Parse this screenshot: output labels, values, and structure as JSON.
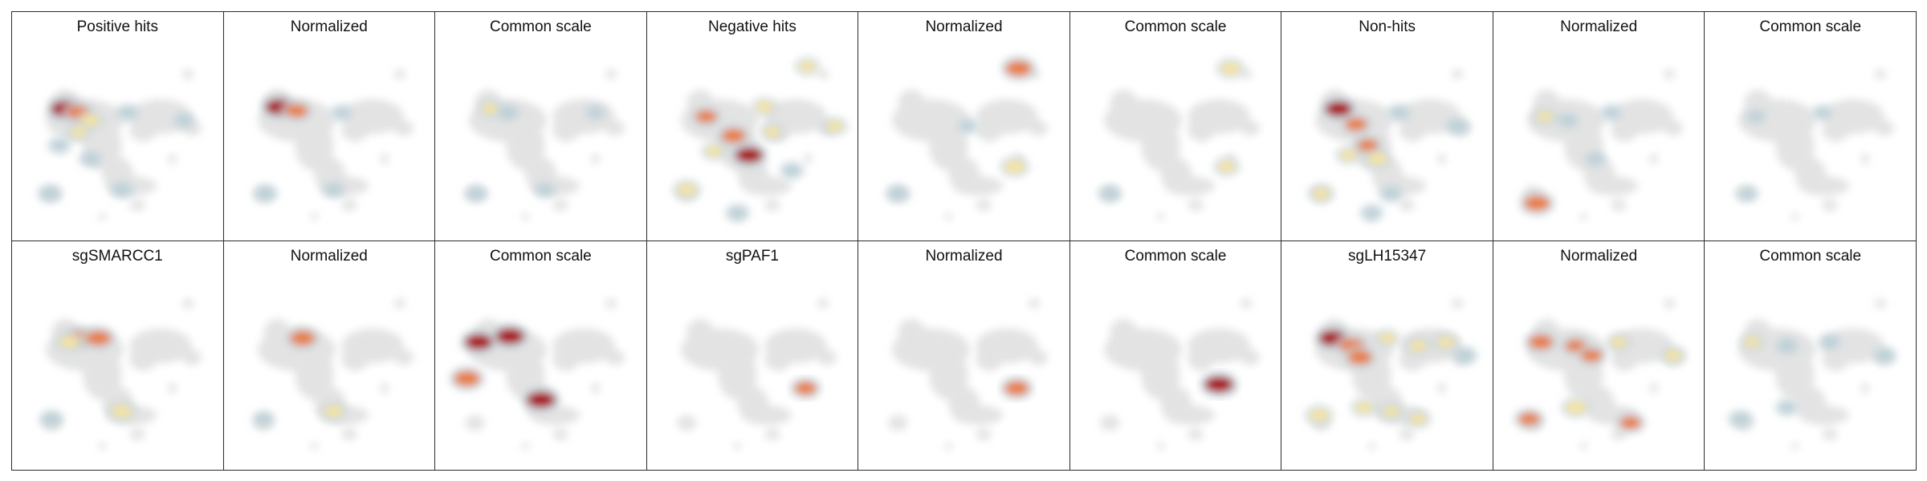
{
  "figure": {
    "rows": [
      {
        "panels": [
          {
            "title": "Positive hits",
            "hotspots": [
              [
                0.23,
                0.36,
                1.0
              ],
              [
                0.3,
                0.38,
                0.7
              ],
              [
                0.36,
                0.42,
                0.45
              ],
              [
                0.55,
                0.38,
                0.3
              ],
              [
                0.2,
                0.55,
                0.25
              ],
              [
                0.36,
                0.62,
                0.25
              ],
              [
                0.84,
                0.42,
                0.2
              ],
              [
                0.15,
                0.8,
                0.3
              ],
              [
                0.52,
                0.78,
                0.3
              ],
              [
                0.3,
                0.48,
                0.35
              ]
            ]
          },
          {
            "title": "Normalized",
            "hotspots": [
              [
                0.24,
                0.35,
                0.95
              ],
              [
                0.33,
                0.37,
                0.65
              ],
              [
                0.56,
                0.38,
                0.2
              ],
              [
                0.17,
                0.8,
                0.3
              ],
              [
                0.52,
                0.78,
                0.25
              ]
            ]
          },
          {
            "title": "Common scale",
            "hotspots": [
              [
                0.24,
                0.36,
                0.35
              ],
              [
                0.33,
                0.38,
                0.3
              ],
              [
                0.17,
                0.8,
                0.25
              ],
              [
                0.52,
                0.78,
                0.2
              ],
              [
                0.78,
                0.38,
                0.15
              ]
            ]
          }
        ]
      },
      {
        "panels": [
          {
            "title": "Negative hits",
            "hotspots": [
              [
                0.78,
                0.14,
                0.35
              ],
              [
                0.26,
                0.4,
                0.6
              ],
              [
                0.4,
                0.5,
                0.75
              ],
              [
                0.48,
                0.6,
                0.95
              ],
              [
                0.56,
                0.35,
                0.4
              ],
              [
                0.6,
                0.48,
                0.35
              ],
              [
                0.92,
                0.45,
                0.35
              ],
              [
                0.16,
                0.78,
                0.5
              ],
              [
                0.7,
                0.68,
                0.3
              ],
              [
                0.42,
                0.9,
                0.3
              ],
              [
                0.3,
                0.58,
                0.35
              ]
            ]
          },
          {
            "title": "Normalized",
            "hotspots": [
              [
                0.78,
                0.15,
                0.85
              ],
              [
                0.76,
                0.66,
                0.55
              ],
              [
                0.16,
                0.8,
                0.3
              ],
              [
                0.52,
                0.45,
                0.15
              ]
            ]
          },
          {
            "title": "Common scale",
            "hotspots": [
              [
                0.78,
                0.15,
                0.5
              ],
              [
                0.76,
                0.66,
                0.4
              ],
              [
                0.16,
                0.8,
                0.25
              ]
            ]
          }
        ]
      },
      {
        "panels": [
          {
            "title": "Non-hits",
            "hotspots": [
              [
                0.25,
                0.36,
                0.9
              ],
              [
                0.34,
                0.44,
                0.65
              ],
              [
                0.4,
                0.55,
                0.6
              ],
              [
                0.45,
                0.62,
                0.5
              ],
              [
                0.3,
                0.6,
                0.35
              ],
              [
                0.56,
                0.38,
                0.3
              ],
              [
                0.86,
                0.45,
                0.3
              ],
              [
                0.16,
                0.8,
                0.4
              ],
              [
                0.52,
                0.8,
                0.3
              ],
              [
                0.42,
                0.9,
                0.25
              ]
            ]
          },
          {
            "title": "Normalized",
            "hotspots": [
              [
                0.18,
                0.85,
                0.85
              ],
              [
                0.22,
                0.4,
                0.35
              ],
              [
                0.34,
                0.42,
                0.2
              ],
              [
                0.56,
                0.38,
                0.2
              ],
              [
                0.48,
                0.62,
                0.2
              ]
            ]
          },
          {
            "title": "Common scale",
            "hotspots": [
              [
                0.22,
                0.4,
                0.15
              ],
              [
                0.56,
                0.38,
                0.15
              ],
              [
                0.18,
                0.8,
                0.15
              ]
            ]
          }
        ]
      }
    ],
    "rows2": [
      {
        "panels": [
          {
            "title": "sgSMARCC1",
            "hotspots": [
              [
                0.3,
                0.36,
                0.85
              ],
              [
                0.4,
                0.36,
                0.8
              ],
              [
                0.25,
                0.38,
                0.5
              ],
              [
                0.52,
                0.74,
                0.55
              ],
              [
                0.16,
                0.78,
                0.3
              ]
            ]
          },
          {
            "title": "Normalized",
            "hotspots": [
              [
                0.36,
                0.36,
                0.8
              ],
              [
                0.52,
                0.74,
                0.45
              ],
              [
                0.16,
                0.78,
                0.2
              ]
            ]
          },
          {
            "title": "Common scale",
            "hotspots": [
              [
                0.34,
                0.35,
                1.0
              ],
              [
                0.18,
                0.38,
                0.95
              ],
              [
                0.12,
                0.57,
                0.85
              ],
              [
                0.5,
                0.68,
                1.0
              ]
            ]
          }
        ]
      },
      {
        "panels": [
          {
            "title": "sgPAF1",
            "hotspots": [
              [
                0.77,
                0.62,
                0.65
              ]
            ]
          },
          {
            "title": "Normalized",
            "hotspots": [
              [
                0.77,
                0.62,
                0.75
              ]
            ]
          },
          {
            "title": "Common scale",
            "hotspots": [
              [
                0.72,
                0.6,
                1.0
              ]
            ]
          }
        ]
      },
      {
        "panels": [
          {
            "title": "sgLH15347",
            "hotspots": [
              [
                0.22,
                0.36,
                0.95
              ],
              [
                0.32,
                0.4,
                0.8
              ],
              [
                0.36,
                0.46,
                0.75
              ],
              [
                0.5,
                0.36,
                0.35
              ],
              [
                0.66,
                0.4,
                0.4
              ],
              [
                0.8,
                0.38,
                0.4
              ],
              [
                0.9,
                0.45,
                0.3
              ],
              [
                0.15,
                0.76,
                0.5
              ],
              [
                0.38,
                0.72,
                0.4
              ],
              [
                0.52,
                0.74,
                0.35
              ],
              [
                0.66,
                0.78,
                0.35
              ]
            ]
          },
          {
            "title": "Normalized",
            "hotspots": [
              [
                0.2,
                0.38,
                0.75
              ],
              [
                0.38,
                0.4,
                0.6
              ],
              [
                0.46,
                0.45,
                0.6
              ],
              [
                0.6,
                0.38,
                0.35
              ],
              [
                0.88,
                0.45,
                0.4
              ],
              [
                0.14,
                0.78,
                0.6
              ],
              [
                0.38,
                0.72,
                0.55
              ],
              [
                0.66,
                0.8,
                0.6
              ]
            ]
          },
          {
            "title": "Common scale",
            "hotspots": [
              [
                0.2,
                0.38,
                0.35
              ],
              [
                0.38,
                0.4,
                0.3
              ],
              [
                0.6,
                0.38,
                0.25
              ],
              [
                0.88,
                0.45,
                0.25
              ],
              [
                0.14,
                0.78,
                0.3
              ],
              [
                0.38,
                0.72,
                0.25
              ]
            ]
          }
        ]
      }
    ],
    "palette": {
      "base": "#e3e3e3",
      "edge": "#c8d6dc",
      "low": "#b9cfd6",
      "mid": "#f7e49a",
      "high": "#e87a3c",
      "max": "#a80d12"
    }
  }
}
